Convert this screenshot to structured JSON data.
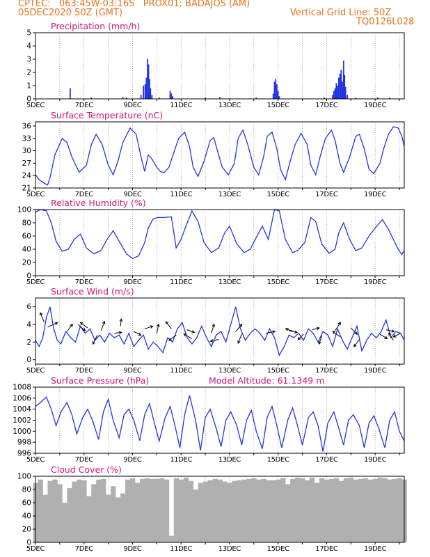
{
  "header": {
    "line1_left": "CPTEC:   063:45W-03:16S   PROX01: BADAJOS (AM)",
    "line2_left": "05DEC2020 50Z (GMT)",
    "line2_right": "Vertical Grid Line: 50Z",
    "line3_right": "TQ0126L028"
  },
  "colors": {
    "series": "#2233dd",
    "title": "#d0147e",
    "header": "#e8731e",
    "cloud": "#b0b0b0",
    "grid": "#777777"
  },
  "chart_data": [
    {
      "type": "bar",
      "title": "Precipitation (mm/h)",
      "ylim": [
        0,
        5
      ],
      "yticks": [
        0,
        1,
        2,
        3,
        4,
        5
      ],
      "xticks": [
        "5DEC",
        "7DEC",
        "9DEC",
        "11DEC",
        "13DEC",
        "15DEC",
        "17DEC",
        "19DEC"
      ],
      "x_unit": "day",
      "xlim": [
        5,
        20.2
      ],
      "bars": [
        [
          6.43,
          0.8
        ],
        [
          7.3,
          0.1
        ],
        [
          8.6,
          0.15
        ],
        [
          8.75,
          0.1
        ],
        [
          9.35,
          0.3
        ],
        [
          9.45,
          1.0
        ],
        [
          9.52,
          1.1
        ],
        [
          9.57,
          1.6
        ],
        [
          9.62,
          3.0
        ],
        [
          9.66,
          2.6
        ],
        [
          9.7,
          1.5
        ],
        [
          9.74,
          0.8
        ],
        [
          9.8,
          0.3
        ],
        [
          10.1,
          0.1
        ],
        [
          10.55,
          0.6
        ],
        [
          10.6,
          0.4
        ],
        [
          10.65,
          0.2
        ],
        [
          12.0,
          0.1
        ],
        [
          12.6,
          0.15
        ],
        [
          14.1,
          0.1
        ],
        [
          14.8,
          0.4
        ],
        [
          14.85,
          1.3
        ],
        [
          14.9,
          1.5
        ],
        [
          14.95,
          1.1
        ],
        [
          15.0,
          0.6
        ],
        [
          15.05,
          0.2
        ],
        [
          16.9,
          0.1
        ],
        [
          17.25,
          0.3
        ],
        [
          17.3,
          0.6
        ],
        [
          17.35,
          0.8
        ],
        [
          17.4,
          1.2
        ],
        [
          17.45,
          1.0
        ],
        [
          17.5,
          1.6
        ],
        [
          17.55,
          1.9
        ],
        [
          17.6,
          2.2
        ],
        [
          17.65,
          1.3
        ],
        [
          17.7,
          2.9
        ],
        [
          17.74,
          1.8
        ],
        [
          17.78,
          0.9
        ],
        [
          17.85,
          0.3
        ],
        [
          18.2,
          0.1
        ],
        [
          19.1,
          0.1
        ],
        [
          19.6,
          0.1
        ]
      ]
    },
    {
      "type": "line",
      "title": "Surface Temperature (nC)",
      "ylim": [
        21,
        37
      ],
      "yticks": [
        21,
        24,
        27,
        30,
        33,
        36
      ],
      "xticks": [
        "5DEC",
        "7DEC",
        "9DEC",
        "11DEC",
        "13DEC",
        "15DEC",
        "17DEC",
        "19DEC"
      ],
      "xlim": [
        5,
        20.2
      ],
      "x": [
        5.0,
        5.15,
        5.35,
        5.5,
        5.6,
        5.8,
        6.1,
        6.3,
        6.5,
        6.8,
        7.1,
        7.3,
        7.5,
        7.75,
        8.0,
        8.2,
        8.4,
        8.6,
        8.9,
        9.15,
        9.35,
        9.5,
        9.65,
        9.8,
        10.0,
        10.15,
        10.3,
        10.5,
        10.7,
        10.9,
        11.15,
        11.35,
        11.5,
        11.7,
        11.95,
        12.2,
        12.35,
        12.5,
        12.7,
        12.95,
        13.2,
        13.35,
        13.55,
        13.75,
        14.0,
        14.2,
        14.4,
        14.55,
        14.75,
        14.95,
        15.1,
        15.3,
        15.5,
        15.7,
        15.95,
        16.2,
        16.35,
        16.55,
        16.75,
        16.95,
        17.2,
        17.35,
        17.55,
        17.7,
        17.95,
        18.2,
        18.35,
        18.55,
        18.75,
        18.95,
        19.2,
        19.35,
        19.55,
        19.75,
        19.95,
        20.1,
        20.2
      ],
      "y": [
        24.2,
        23.0,
        22.2,
        21.7,
        23.5,
        29.0,
        33.0,
        32.0,
        28.5,
        24.8,
        26.5,
        31.5,
        34.0,
        31.5,
        26.5,
        24.2,
        27.5,
        32.0,
        35.5,
        34.0,
        28.5,
        25.0,
        29.0,
        28.0,
        26.0,
        25.0,
        24.7,
        26.0,
        29.5,
        33.0,
        34.5,
        31.0,
        26.0,
        23.8,
        27.5,
        32.5,
        33.2,
        30.0,
        26.0,
        24.2,
        27.0,
        33.0,
        35.0,
        31.5,
        26.0,
        24.2,
        28.5,
        33.5,
        34.5,
        30.5,
        25.5,
        23.0,
        27.5,
        31.5,
        34.2,
        31.5,
        26.5,
        24.2,
        29.0,
        33.0,
        35.0,
        32.5,
        27.0,
        24.8,
        28.5,
        33.5,
        34.0,
        30.5,
        25.5,
        24.5,
        27.0,
        30.5,
        34.0,
        35.8,
        35.5,
        33.5,
        31.0
      ]
    },
    {
      "type": "line",
      "title": "Relative Humidity (%)",
      "ylim": [
        0,
        100
      ],
      "yticks": [
        0,
        20,
        40,
        60,
        80,
        100
      ],
      "xticks": [
        "5DEC",
        "7DEC",
        "9DEC",
        "11DEC",
        "13DEC",
        "15DEC",
        "17DEC",
        "19DEC"
      ],
      "xlim": [
        5,
        20.2
      ],
      "x": [
        5.0,
        5.2,
        5.45,
        5.65,
        5.85,
        6.1,
        6.35,
        6.6,
        6.85,
        7.1,
        7.4,
        7.7,
        7.95,
        8.2,
        8.45,
        8.75,
        9.0,
        9.25,
        9.5,
        9.65,
        9.85,
        10.05,
        10.3,
        10.6,
        10.8,
        11.0,
        11.2,
        11.45,
        11.7,
        11.95,
        12.25,
        12.55,
        12.8,
        13.0,
        13.3,
        13.6,
        13.85,
        14.1,
        14.35,
        14.6,
        14.85,
        15.05,
        15.3,
        15.6,
        15.8,
        16.1,
        16.35,
        16.55,
        16.8,
        17.1,
        17.35,
        17.5,
        17.7,
        17.95,
        18.2,
        18.45,
        18.75,
        19.0,
        19.3,
        19.55,
        19.75,
        19.95,
        20.1,
        20.2
      ],
      "y": [
        96,
        100,
        98,
        80,
        52,
        37,
        40,
        55,
        63,
        42,
        33,
        38,
        55,
        68,
        52,
        33,
        26,
        30,
        50,
        72,
        86,
        88,
        88,
        89,
        42,
        55,
        75,
        98,
        82,
        50,
        35,
        42,
        65,
        75,
        48,
        35,
        40,
        58,
        75,
        55,
        100,
        98,
        55,
        35,
        38,
        50,
        88,
        82,
        48,
        34,
        40,
        65,
        80,
        55,
        38,
        42,
        60,
        72,
        85,
        70,
        55,
        40,
        32,
        38
      ]
    },
    {
      "type": "line",
      "title": "Surface Wind (m/s)",
      "ylim": [
        -0.5,
        7
      ],
      "yticks": [
        0,
        2,
        4,
        6
      ],
      "xticks": [
        "5DEC",
        "7DEC",
        "9DEC",
        "11DEC",
        "13DEC",
        "15DEC",
        "17DEC",
        "19DEC"
      ],
      "xlim": [
        5,
        20.2
      ],
      "x": [
        5.0,
        5.15,
        5.3,
        5.45,
        5.6,
        5.75,
        5.9,
        6.05,
        6.25,
        6.45,
        6.65,
        6.85,
        7.05,
        7.25,
        7.45,
        7.65,
        7.85,
        8.05,
        8.25,
        8.45,
        8.65,
        8.85,
        9.05,
        9.25,
        9.45,
        9.65,
        9.85,
        10.05,
        10.25,
        10.45,
        10.65,
        10.85,
        11.05,
        11.25,
        11.45,
        11.65,
        11.85,
        12.05,
        12.25,
        12.45,
        12.65,
        12.85,
        13.05,
        13.25,
        13.45,
        13.65,
        13.85,
        14.05,
        14.25,
        14.45,
        14.65,
        14.85,
        15.05,
        15.25,
        15.45,
        15.65,
        15.85,
        16.05,
        16.25,
        16.45,
        16.65,
        16.85,
        17.05,
        17.25,
        17.45,
        17.65,
        17.85,
        18.05,
        18.25,
        18.45,
        18.65,
        18.85,
        19.05,
        19.25,
        19.45,
        19.65,
        19.85,
        20.05,
        20.2
      ],
      "y": [
        2.2,
        1.5,
        2.5,
        4.8,
        6.0,
        3.5,
        2.2,
        1.8,
        3.2,
        2.5,
        2.0,
        3.8,
        3.0,
        3.5,
        2.2,
        2.8,
        2.0,
        3.0,
        2.5,
        2.8,
        1.8,
        3.0,
        1.5,
        2.2,
        2.8,
        1.2,
        2.0,
        1.5,
        0.8,
        2.5,
        2.0,
        3.5,
        4.2,
        2.5,
        1.8,
        2.5,
        3.8,
        2.5,
        1.5,
        2.8,
        3.2,
        2.0,
        4.0,
        6.0,
        3.5,
        2.2,
        3.0,
        3.5,
        3.0,
        2.2,
        3.5,
        2.5,
        0.5,
        1.5,
        2.8,
        2.5,
        3.0,
        2.2,
        3.5,
        3.0,
        2.0,
        3.2,
        2.8,
        1.5,
        3.5,
        2.2,
        1.2,
        2.5,
        3.8,
        1.0,
        2.2,
        3.0,
        2.5,
        3.2,
        4.5,
        2.5,
        3.2,
        3.0,
        2.2
      ],
      "vectors": [
        [
          5.35,
          4.3,
          -0.4,
          1.0
        ],
        [
          5.5,
          3.7,
          1.1,
          0.5
        ],
        [
          6.3,
          3.2,
          0.6,
          0.8
        ],
        [
          6.75,
          4.0,
          0.8,
          -0.7
        ],
        [
          7.15,
          3.6,
          -0.8,
          0.6
        ],
        [
          7.55,
          2.8,
          -0.5,
          -1.0
        ],
        [
          7.7,
          3.3,
          0.4,
          1.0
        ],
        [
          8.25,
          3.0,
          0.8,
          0.1
        ],
        [
          8.5,
          3.8,
          0.1,
          0.8
        ],
        [
          9.05,
          3.2,
          0.8,
          -0.4
        ],
        [
          9.5,
          3.5,
          0.9,
          0.3
        ],
        [
          10.0,
          3.0,
          0.2,
          1.0
        ],
        [
          10.6,
          3.5,
          -0.6,
          0.8
        ],
        [
          10.8,
          2.8,
          -0.8,
          -0.6
        ],
        [
          11.25,
          3.4,
          0.8,
          -0.3
        ],
        [
          11.45,
          2.4,
          -0.9,
          0.5
        ],
        [
          12.25,
          3.0,
          0.3,
          1.0
        ],
        [
          12.55,
          2.3,
          -0.9,
          -0.2
        ],
        [
          13.25,
          3.2,
          0.7,
          0.8
        ],
        [
          13.5,
          2.9,
          -0.4,
          -1.0
        ],
        [
          14.5,
          3.0,
          1.0,
          0.2
        ],
        [
          15.45,
          3.3,
          0.9,
          -0.2
        ],
        [
          15.65,
          3.2,
          -0.9,
          0.3
        ],
        [
          16.05,
          2.9,
          -0.6,
          -0.6
        ],
        [
          16.4,
          3.4,
          0.8,
          0.2
        ],
        [
          16.8,
          2.7,
          -0.3,
          -0.9
        ],
        [
          17.35,
          3.3,
          0.6,
          0.9
        ],
        [
          17.55,
          2.6,
          -0.8,
          0.6
        ],
        [
          18.0,
          3.6,
          0.7,
          -0.7
        ],
        [
          18.35,
          2.3,
          -0.6,
          -0.8
        ],
        [
          19.2,
          2.9,
          0.8,
          -0.5
        ],
        [
          19.45,
          3.4,
          0.9,
          -0.2
        ],
        [
          19.75,
          2.2,
          -0.5,
          0.8
        ],
        [
          20.05,
          3.0,
          -0.8,
          -0.4
        ]
      ]
    },
    {
      "type": "line",
      "title": "Surface Pressure (hPa)",
      "annotation": "Model Altitude: 61.1349 m",
      "ylim": [
        996,
        1008
      ],
      "yticks": [
        996,
        998,
        1000,
        1002,
        1004,
        1006,
        1008
      ],
      "xticks": [
        "5DEC",
        "7DEC",
        "9DEC",
        "11DEC",
        "13DEC",
        "15DEC",
        "17DEC",
        "19DEC"
      ],
      "xlim": [
        5,
        20.2
      ],
      "x": [
        5.0,
        5.2,
        5.45,
        5.65,
        5.85,
        6.05,
        6.3,
        6.5,
        6.7,
        6.95,
        7.15,
        7.35,
        7.6,
        7.8,
        8.0,
        8.2,
        8.45,
        8.65,
        8.85,
        9.05,
        9.3,
        9.5,
        9.7,
        9.9,
        10.1,
        10.35,
        10.55,
        10.75,
        10.95,
        11.15,
        11.35,
        11.6,
        11.8,
        12.0,
        12.2,
        12.45,
        12.65,
        12.85,
        13.05,
        13.3,
        13.5,
        13.7,
        13.9,
        14.1,
        14.35,
        14.55,
        14.75,
        14.95,
        15.15,
        15.4,
        15.6,
        15.8,
        16.0,
        16.25,
        16.45,
        16.65,
        16.85,
        17.05,
        17.3,
        17.5,
        17.7,
        17.9,
        18.1,
        18.35,
        18.55,
        18.75,
        18.95,
        19.15,
        19.4,
        19.6,
        19.8,
        20.0,
        20.2
      ],
      "y": [
        1004.5,
        1005.2,
        1006.2,
        1004.0,
        1001.0,
        1003.5,
        1005.2,
        1003.0,
        999.5,
        1002.5,
        1004.0,
        1002.0,
        998.5,
        1003.5,
        1005.8,
        1002.0,
        998.8,
        1003.0,
        1004.0,
        1002.0,
        998.3,
        1003.0,
        1005.0,
        1001.5,
        998.2,
        1002.5,
        1004.5,
        1001.0,
        997.0,
        1003.0,
        1006.5,
        1002.0,
        996.5,
        1002.5,
        1004.0,
        1000.5,
        997.2,
        1002.0,
        1003.5,
        1001.0,
        997.5,
        1002.0,
        1003.8,
        1000.0,
        996.8,
        1002.5,
        1004.5,
        1001.0,
        997.0,
        1002.0,
        1004.2,
        1001.0,
        997.5,
        1002.5,
        1003.5,
        1001.0,
        996.3,
        1001.5,
        1003.5,
        1000.5,
        997.5,
        1002.0,
        1003.0,
        1001.0,
        997.0,
        1001.5,
        1002.8,
        1000.5,
        997.0,
        1002.0,
        1003.5,
        1000.0,
        998.2
      ]
    },
    {
      "type": "area",
      "title": "Cloud Cover (%)",
      "ylim": [
        0,
        100
      ],
      "yticks": [
        0,
        20,
        40,
        60,
        80,
        100
      ],
      "xticks": [
        "5DEC",
        "7DEC",
        "9DEC",
        "11DEC",
        "13DEC",
        "15DEC",
        "17DEC",
        "19DEC"
      ],
      "xlim": [
        5,
        20.2
      ],
      "x": [
        5.0,
        5.2,
        5.4,
        5.6,
        5.8,
        6.0,
        6.2,
        6.4,
        6.6,
        6.8,
        7.0,
        7.2,
        7.4,
        7.6,
        7.8,
        8.0,
        8.2,
        8.4,
        8.6,
        8.8,
        9.0,
        9.2,
        9.4,
        9.6,
        9.8,
        10.0,
        10.2,
        10.4,
        10.6,
        10.8,
        11.0,
        11.2,
        11.4,
        11.6,
        11.8,
        12.0,
        12.2,
        12.4,
        12.6,
        12.8,
        13.0,
        13.2,
        13.4,
        13.6,
        13.8,
        14.0,
        14.2,
        14.4,
        14.6,
        14.8,
        15.0,
        15.2,
        15.4,
        15.6,
        15.8,
        16.0,
        16.2,
        16.4,
        16.6,
        16.8,
        17.0,
        17.2,
        17.4,
        17.6,
        17.8,
        18.0,
        18.2,
        18.4,
        18.6,
        18.8,
        19.0,
        19.2,
        19.4,
        19.6,
        19.8,
        20.0,
        20.2
      ],
      "y": [
        90,
        95,
        72,
        93,
        95,
        88,
        60,
        82,
        92,
        95,
        94,
        70,
        88,
        95,
        96,
        72,
        85,
        68,
        74,
        95,
        97,
        90,
        96,
        97,
        96,
        96,
        97,
        95,
        10,
        97,
        95,
        98,
        93,
        80,
        90,
        92,
        94,
        96,
        95,
        92,
        90,
        93,
        94,
        95,
        96,
        97,
        95,
        96,
        94,
        94,
        95,
        97,
        88,
        96,
        98,
        97,
        94,
        98,
        90,
        97,
        95,
        96,
        97,
        93,
        97,
        98,
        95,
        96,
        97,
        95,
        96,
        98,
        97,
        95,
        96,
        97,
        95
      ]
    }
  ]
}
